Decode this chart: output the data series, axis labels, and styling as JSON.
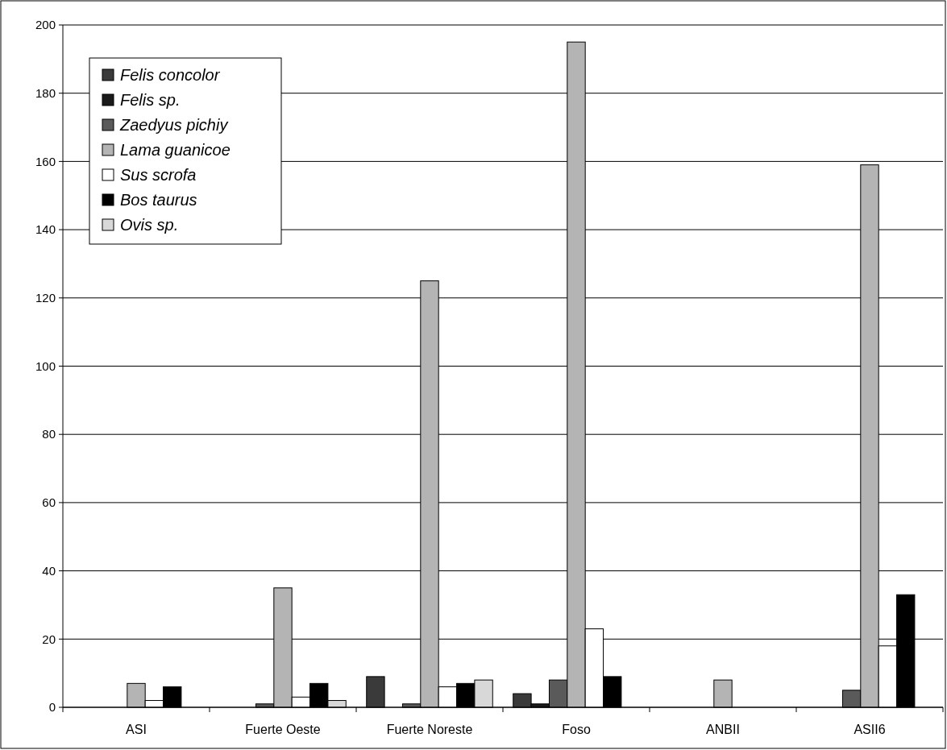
{
  "chart_data": {
    "type": "bar",
    "categories": [
      "ASI",
      "Fuerte Oeste",
      "Fuerte Noreste",
      "Foso",
      "ANBII",
      "ASII6"
    ],
    "series": [
      {
        "name": "Felis concolor",
        "color": "#3a3a3a",
        "values": [
          null,
          null,
          9,
          4,
          null,
          null
        ]
      },
      {
        "name": "Felis sp.",
        "color": "#1a1a1a",
        "values": [
          null,
          null,
          null,
          1,
          null,
          null
        ]
      },
      {
        "name": "Zaedyus pichiy",
        "color": "#5a5a5a",
        "values": [
          null,
          1,
          1,
          8,
          null,
          5
        ]
      },
      {
        "name": "Lama guanicoe",
        "color": "#b4b4b4",
        "values": [
          7,
          35,
          125,
          195,
          8,
          159
        ]
      },
      {
        "name": "Sus scrofa",
        "color": "#ffffff",
        "values": [
          2,
          3,
          6,
          23,
          null,
          18
        ]
      },
      {
        "name": "Bos taurus",
        "color": "#000000",
        "values": [
          6,
          7,
          7,
          9,
          null,
          33
        ]
      },
      {
        "name": "Ovis sp.",
        "color": "#d8d8d8",
        "values": [
          null,
          2,
          8,
          null,
          null,
          null
        ]
      }
    ],
    "ylim": [
      0,
      200
    ],
    "yticks": [
      0,
      20,
      40,
      60,
      80,
      100,
      120,
      140,
      160,
      180,
      200
    ],
    "grid": "y",
    "legend": "top left"
  }
}
